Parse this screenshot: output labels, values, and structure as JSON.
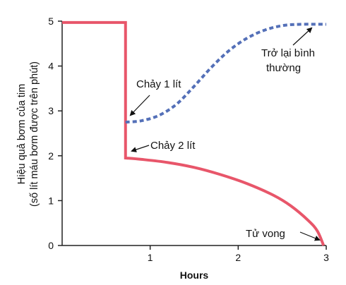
{
  "chart_data": {
    "type": "line",
    "xlabel": "Hours",
    "ylabel_line1": "Hiệu quả bơm của tim",
    "ylabel_line2": "(số lít máu bơm được trên phút)",
    "xlim": [
      0,
      3
    ],
    "ylim": [
      0,
      5
    ],
    "x_ticks": [
      1,
      2,
      3
    ],
    "y_ticks": [
      0,
      1,
      2,
      3,
      4,
      5
    ],
    "grid": false,
    "series": [
      {
        "style": "solid",
        "color": "#e8566a",
        "points": [
          [
            0.0,
            4.97
          ],
          [
            0.72,
            4.97
          ],
          [
            0.72,
            1.95
          ],
          [
            0.9,
            1.92
          ],
          [
            1.2,
            1.85
          ],
          [
            1.5,
            1.74
          ],
          [
            1.8,
            1.58
          ],
          [
            2.1,
            1.38
          ],
          [
            2.4,
            1.12
          ],
          [
            2.6,
            0.88
          ],
          [
            2.8,
            0.55
          ],
          [
            2.9,
            0.32
          ],
          [
            2.97,
            0.0
          ]
        ]
      },
      {
        "style": "dashed",
        "color": "#5470b8",
        "points": [
          [
            0.72,
            2.75
          ],
          [
            0.9,
            2.78
          ],
          [
            1.1,
            2.9
          ],
          [
            1.3,
            3.15
          ],
          [
            1.5,
            3.55
          ],
          [
            1.7,
            3.98
          ],
          [
            1.9,
            4.35
          ],
          [
            2.1,
            4.62
          ],
          [
            2.3,
            4.8
          ],
          [
            2.5,
            4.9
          ],
          [
            2.7,
            4.93
          ],
          [
            3.0,
            4.93
          ]
        ]
      }
    ],
    "annotations": [
      {
        "id": "bleed-1",
        "label": "Chảy 1 lít"
      },
      {
        "id": "bleed-2",
        "label": "Chảy 2 lít"
      },
      {
        "id": "recover-1",
        "label": "Trở lại bình"
      },
      {
        "id": "recover-2",
        "label": "thường"
      },
      {
        "id": "death",
        "label": "Tử vong"
      }
    ]
  }
}
